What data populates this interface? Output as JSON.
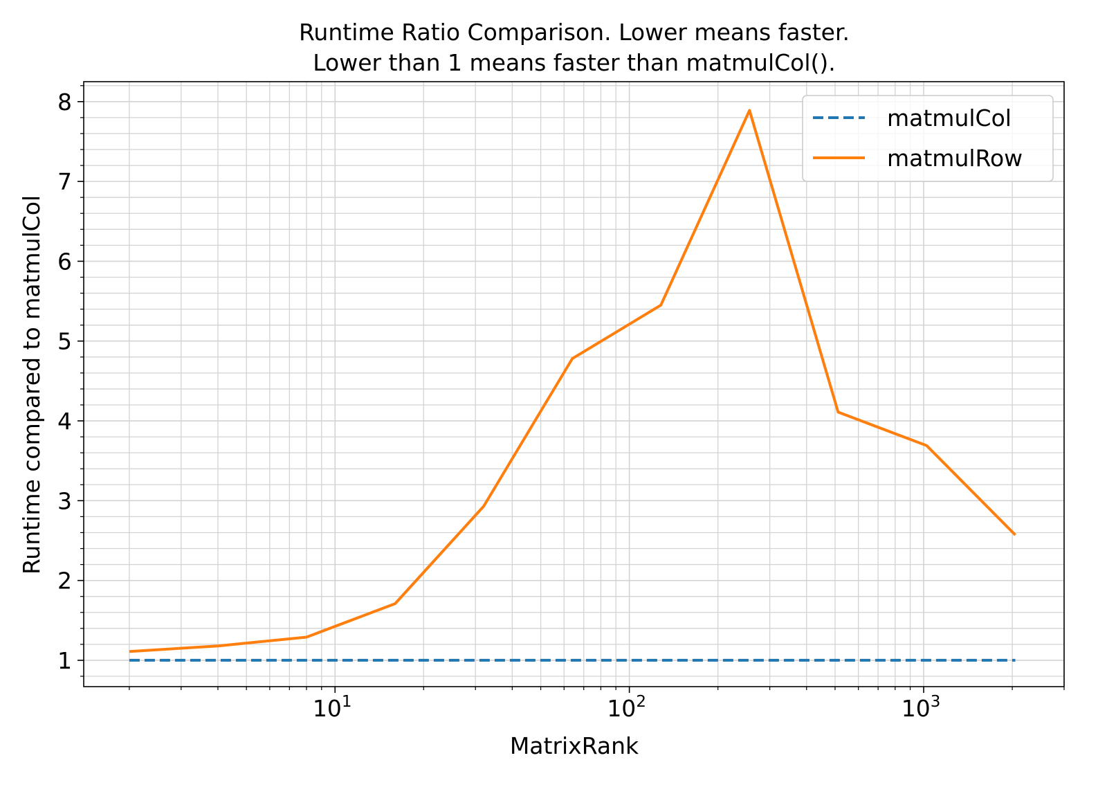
{
  "chart_data": {
    "type": "line",
    "title": "Runtime Ratio Comparison. Lower means faster.",
    "subtitle": "Lower than 1 means faster than matmulCol().",
    "xlabel": "MatrixRank",
    "ylabel": "Runtime compared to matmulCol",
    "x_scale": "log",
    "xlim": [
      1.4,
      3000
    ],
    "ylim": [
      0.67,
      8.25
    ],
    "x_ticks": [
      {
        "base": "10",
        "exp": "1",
        "value": 10
      },
      {
        "base": "10",
        "exp": "2",
        "value": 100
      },
      {
        "base": "10",
        "exp": "3",
        "value": 1000
      }
    ],
    "y_ticks": [
      "1",
      "2",
      "3",
      "4",
      "5",
      "6",
      "7",
      "8"
    ],
    "grid": true,
    "legend_position": "top-right",
    "x": [
      2,
      4,
      8,
      16,
      32,
      64,
      128,
      256,
      512,
      1024,
      2048
    ],
    "series": [
      {
        "name": "matmulCol",
        "color": "#1f77b4",
        "linestyle": "dashed",
        "values": [
          1,
          1,
          1,
          1,
          1,
          1,
          1,
          1,
          1,
          1,
          1
        ]
      },
      {
        "name": "matmulRow",
        "color": "#ff7f0e",
        "linestyle": "solid",
        "values": [
          1.11,
          1.18,
          1.29,
          1.71,
          2.93,
          4.78,
          5.45,
          7.89,
          4.11,
          3.69,
          2.57
        ]
      }
    ]
  }
}
